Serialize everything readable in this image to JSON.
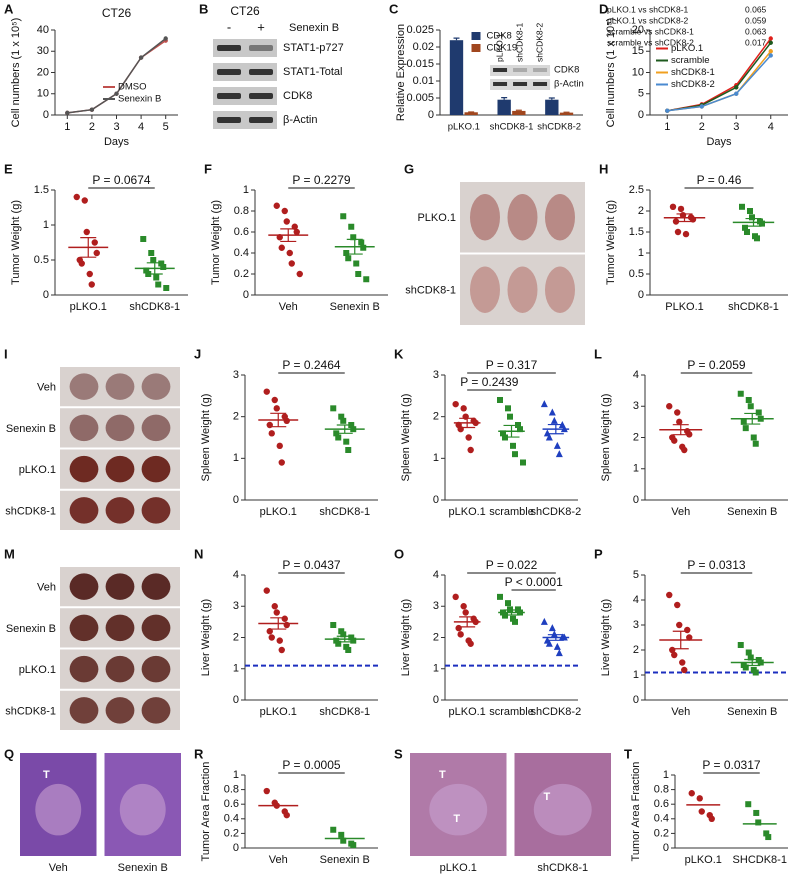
{
  "chart_data": [
    {
      "panel": "A",
      "type": "line",
      "title": "CT26",
      "xlabel": "Days",
      "ylabel": "Cell numbers (1 x 10⁵)",
      "x": [
        1,
        2,
        3,
        4,
        5
      ],
      "xlim": [
        0.5,
        5.5
      ],
      "xticks": [
        1,
        2,
        3,
        4,
        5
      ],
      "ylim": [
        0,
        40
      ],
      "yticks": [
        0,
        10,
        20,
        30,
        40
      ],
      "legend": "lower right",
      "series": [
        {
          "name": "DMSO",
          "color": "#c0504d",
          "values": [
            1,
            2.5,
            10,
            27,
            35
          ]
        },
        {
          "name": "Senexin B",
          "color": "#555555",
          "values": [
            1,
            2.5,
            10,
            27,
            36
          ]
        }
      ]
    },
    {
      "panel": "B",
      "type": "blot",
      "title": "CT26",
      "treatment": "Senexin B",
      "lanes": [
        "-",
        "+"
      ],
      "bands": [
        "STAT1-p727",
        "STAT1-Total",
        "CDK8",
        "β-Actin"
      ]
    },
    {
      "panel": "C",
      "type": "bar",
      "ylabel": "Relative Expression",
      "categories": [
        "pLKO.1",
        "shCDK8-1",
        "shCDK8-2"
      ],
      "ylim": [
        0,
        0.025
      ],
      "yticks": [
        0,
        0.005,
        0.01,
        0.015,
        0.02,
        0.025
      ],
      "legend": "upper center",
      "series": [
        {
          "name": "CDK8",
          "color": "#1f3a6e",
          "values": [
            0.022,
            0.0045,
            0.0045
          ],
          "errors": [
            0.0006,
            0.0006,
            0.0005
          ]
        },
        {
          "name": "CDK19",
          "color": "#a0461e",
          "values": [
            0.0008,
            0.0012,
            0.0007
          ],
          "errors": [
            0.0001,
            0.0002,
            0.0001
          ]
        }
      ],
      "inset": {
        "lanes": [
          "pLKO.1",
          "shCDK8-1",
          "shCDK8-2"
        ],
        "bands": [
          "CDK8",
          "β-Actin"
        ]
      }
    },
    {
      "panel": "D",
      "type": "line",
      "xlabel": "Days",
      "ylabel": "Cell numbers (1 x 10⁵)",
      "x": [
        1,
        2,
        3,
        4
      ],
      "xlim": [
        0.5,
        4.5
      ],
      "xticks": [
        1,
        2,
        3,
        4
      ],
      "ylim": [
        0,
        20
      ],
      "yticks": [
        0,
        5,
        10,
        15,
        20
      ],
      "legend": "center left",
      "comparisons": [
        "pLKO.1 vs shCDK8-1",
        "pLKO.1 vs shCDK8-2",
        "scramble vs shCDK8-1",
        "scramble vs shCDK8-2"
      ],
      "p_values": [
        0.065,
        0.059,
        0.063,
        0.017
      ],
      "series": [
        {
          "name": "pLKO.1",
          "color": "#e0201b",
          "values": [
            1,
            2.5,
            7,
            18
          ]
        },
        {
          "name": "scramble",
          "color": "#1e5a1e",
          "values": [
            1,
            2.3,
            6.5,
            17
          ]
        },
        {
          "name": "shCDK8-1",
          "color": "#f0a020",
          "values": [
            1,
            2,
            5,
            15
          ]
        },
        {
          "name": "shCDK8-2",
          "color": "#4a8ad0",
          "values": [
            1,
            2,
            5,
            14
          ]
        }
      ]
    },
    {
      "panel": "E",
      "type": "dot",
      "ylabel": "Tumor Weight (g)",
      "categories": [
        "pLKO.1",
        "shCDK8-1"
      ],
      "ylim": [
        0,
        1.5
      ],
      "yticks": [
        0,
        0.5,
        1,
        1.5
      ],
      "groups": [
        {
          "color": "#b01e1e",
          "marker": "circle",
          "points": [
            1.4,
            1.35,
            0.9,
            0.75,
            0.6,
            0.5,
            0.45,
            0.3,
            0.15
          ],
          "mean": 0.68,
          "sem": 0.14
        },
        {
          "color": "#2a8a2a",
          "marker": "square",
          "points": [
            0.8,
            0.6,
            0.5,
            0.45,
            0.4,
            0.35,
            0.3,
            0.25,
            0.15,
            0.1
          ],
          "mean": 0.38,
          "sem": 0.08
        }
      ],
      "pvalues": [
        {
          "between": [
            "pLKO.1",
            "shCDK8-1"
          ],
          "label": "P = 0.0674"
        }
      ]
    },
    {
      "panel": "F",
      "type": "dot",
      "ylabel": "Tumor Weight (g)",
      "categories": [
        "Veh",
        "Senexin B"
      ],
      "ylim": [
        0,
        1
      ],
      "yticks": [
        0,
        0.2,
        0.4,
        0.6,
        0.8,
        1
      ],
      "groups": [
        {
          "color": "#b01e1e",
          "marker": "circle",
          "points": [
            0.85,
            0.8,
            0.7,
            0.65,
            0.6,
            0.55,
            0.45,
            0.4,
            0.3,
            0.2
          ],
          "mean": 0.57,
          "sem": 0.06
        },
        {
          "color": "#2a8a2a",
          "marker": "square",
          "points": [
            0.75,
            0.65,
            0.55,
            0.5,
            0.45,
            0.4,
            0.35,
            0.3,
            0.2,
            0.15
          ],
          "mean": 0.46,
          "sem": 0.07
        }
      ],
      "pvalues": [
        {
          "between": [
            "Veh",
            "Senexin B"
          ],
          "label": "P = 0.2279"
        }
      ]
    },
    {
      "panel": "G",
      "type": "image",
      "rows": [
        "PLKO.1",
        "shCDK8-1"
      ],
      "colors": [
        "#b88a86",
        "#c49a95"
      ]
    },
    {
      "panel": "H",
      "type": "dot",
      "ylabel": "Tumor Weight (g)",
      "categories": [
        "PLKO.1",
        "shCDK8-1"
      ],
      "ylim": [
        0,
        2.5
      ],
      "yticks": [
        0,
        0.5,
        1,
        1.5,
        2,
        2.5
      ],
      "groups": [
        {
          "color": "#b01e1e",
          "marker": "circle",
          "points": [
            2.1,
            2.05,
            1.9,
            1.85,
            1.8,
            1.75,
            1.5,
            1.45
          ],
          "mean": 1.84,
          "sem": 0.09
        },
        {
          "color": "#2a8a2a",
          "marker": "square",
          "points": [
            2.1,
            2,
            1.85,
            1.75,
            1.7,
            1.6,
            1.5,
            1.4,
            1.35
          ],
          "mean": 1.73,
          "sem": 0.09
        }
      ],
      "pvalues": [
        {
          "between": [
            "PLKO.1",
            "shCDK8-1"
          ],
          "label": "P = 0.46"
        }
      ]
    },
    {
      "panel": "I",
      "type": "image",
      "rows": [
        "Veh",
        "Senexin B",
        "pLKO.1",
        "shCDK8-1"
      ],
      "colors": [
        "#9a7a78",
        "#8f6a68",
        "#6e2a22",
        "#74302a"
      ]
    },
    {
      "panel": "J",
      "type": "dot",
      "ylabel": "Spleen Weight (g)",
      "categories": [
        "pLKO.1",
        "shCDK8-1"
      ],
      "ylim": [
        0,
        3
      ],
      "yticks": [
        0,
        1,
        2,
        3
      ],
      "groups": [
        {
          "color": "#b01e1e",
          "marker": "circle",
          "points": [
            2.6,
            2.4,
            2.2,
            2,
            1.9,
            1.8,
            1.6,
            1.3,
            0.9
          ],
          "mean": 1.92,
          "sem": 0.16
        },
        {
          "color": "#2a8a2a",
          "marker": "square",
          "points": [
            2.2,
            2,
            1.9,
            1.8,
            1.7,
            1.6,
            1.5,
            1.4,
            1.2
          ],
          "mean": 1.7,
          "sem": 0.1
        }
      ],
      "pvalues": [
        {
          "between": [
            "pLKO.1",
            "shCDK8-1"
          ],
          "label": "P = 0.2464"
        }
      ]
    },
    {
      "panel": "K",
      "type": "dot",
      "ylabel": "Spleen Weight (g)",
      "categories": [
        "pLKO.1",
        "scramble",
        "shCDK8-2"
      ],
      "ylim": [
        0,
        3
      ],
      "yticks": [
        0,
        1,
        2,
        3
      ],
      "groups": [
        {
          "color": "#b01e1e",
          "marker": "circle",
          "points": [
            2.3,
            2.2,
            2,
            1.9,
            1.85,
            1.8,
            1.7,
            1.5,
            1.2
          ],
          "mean": 1.85,
          "sem": 0.11
        },
        {
          "color": "#2a8a2a",
          "marker": "square",
          "points": [
            2.4,
            2.2,
            2,
            1.8,
            1.7,
            1.6,
            1.5,
            1.3,
            1.1,
            0.9
          ],
          "mean": 1.65,
          "sem": 0.14
        },
        {
          "color": "#1f3fbf",
          "marker": "triangle",
          "points": [
            2.3,
            2.1,
            1.9,
            1.8,
            1.7,
            1.6,
            1.5,
            1.3,
            1.1
          ],
          "mean": 1.7,
          "sem": 0.11
        }
      ],
      "pvalues": [
        {
          "between": [
            "pLKO.1",
            "shCDK8-2"
          ],
          "label": "P = 0.317"
        },
        {
          "between": [
            "pLKO.1",
            "scramble"
          ],
          "label": "P = 0.2439"
        }
      ]
    },
    {
      "panel": "L",
      "type": "dot",
      "ylabel": "Spleen Weight (g)",
      "categories": [
        "Veh",
        "Senexin B"
      ],
      "ylim": [
        0,
        4
      ],
      "yticks": [
        0,
        1,
        2,
        3,
        4
      ],
      "groups": [
        {
          "color": "#b01e1e",
          "marker": "circle",
          "points": [
            3,
            2.8,
            2.5,
            2.2,
            2.1,
            2,
            1.9,
            1.7,
            1.6
          ],
          "mean": 2.25,
          "sem": 0.16
        },
        {
          "color": "#2a8a2a",
          "marker": "square",
          "points": [
            3.4,
            3.2,
            3,
            2.8,
            2.6,
            2.5,
            2.3,
            2,
            1.8
          ],
          "mean": 2.6,
          "sem": 0.17
        }
      ],
      "pvalues": [
        {
          "between": [
            "Veh",
            "Senexin B"
          ],
          "label": "P = 0.2059"
        }
      ]
    },
    {
      "panel": "M",
      "type": "image",
      "rows": [
        "Veh",
        "Senexin B",
        "pLKO.1",
        "shCDK8-1"
      ],
      "colors": [
        "#5a2a26",
        "#62302a",
        "#6a3a34",
        "#70403a"
      ]
    },
    {
      "panel": "N",
      "type": "dot",
      "ylabel": "Liver Weight (g)",
      "categories": [
        "pLKO.1",
        "shCDK8-1"
      ],
      "ylim": [
        0,
        4
      ],
      "yticks": [
        0,
        1,
        2,
        3,
        4
      ],
      "hline": 1.1,
      "hline_color": "#1c2fbf",
      "groups": [
        {
          "color": "#b01e1e",
          "marker": "circle",
          "points": [
            3.5,
            3,
            2.8,
            2.6,
            2.4,
            2.2,
            2,
            1.9,
            1.6
          ],
          "mean": 2.45,
          "sem": 0.18
        },
        {
          "color": "#2a8a2a",
          "marker": "square",
          "points": [
            2.4,
            2.2,
            2.1,
            2,
            1.9,
            1.9,
            1.8,
            1.7,
            1.6
          ],
          "mean": 1.95,
          "sem": 0.09
        }
      ],
      "pvalues": [
        {
          "between": [
            "pLKO.1",
            "shCDK8-1"
          ],
          "label": "P = 0.0437"
        }
      ]
    },
    {
      "panel": "O",
      "type": "dot",
      "ylabel": "Liver Weight (g)",
      "categories": [
        "pLKO.1",
        "scramble",
        "shCDK8-2"
      ],
      "ylim": [
        0,
        4
      ],
      "yticks": [
        0,
        1,
        2,
        3,
        4
      ],
      "hline": 1.1,
      "hline_color": "#1c2fbf",
      "groups": [
        {
          "color": "#b01e1e",
          "marker": "circle",
          "points": [
            3.3,
            3,
            2.8,
            2.6,
            2.5,
            2.3,
            2.1,
            1.9,
            1.8
          ],
          "mean": 2.5,
          "sem": 0.16
        },
        {
          "color": "#2a8a2a",
          "marker": "square",
          "points": [
            3.3,
            3.1,
            2.9,
            2.9,
            2.8,
            2.8,
            2.7,
            2.6,
            2.5
          ],
          "mean": 2.8,
          "sem": 0.08
        },
        {
          "color": "#1f3fbf",
          "marker": "triangle",
          "points": [
            2.5,
            2.3,
            2.1,
            2,
            2,
            1.9,
            1.8,
            1.7,
            1.5
          ],
          "mean": 2,
          "sem": 0.09
        }
      ],
      "pvalues": [
        {
          "between": [
            "pLKO.1",
            "shCDK8-2"
          ],
          "label": "P = 0.022"
        },
        {
          "between": [
            "scramble",
            "shCDK8-2"
          ],
          "label": "P < 0.0001"
        }
      ]
    },
    {
      "panel": "P",
      "type": "dot",
      "ylabel": "Liver Weight (g)",
      "categories": [
        "Veh",
        "Senexin B"
      ],
      "ylim": [
        0,
        5
      ],
      "yticks": [
        0,
        1,
        2,
        3,
        4,
        5
      ],
      "hline": 1.1,
      "hline_color": "#1c2fbf",
      "groups": [
        {
          "color": "#b01e1e",
          "marker": "circle",
          "points": [
            4.2,
            3.8,
            3,
            2.8,
            2.5,
            2,
            1.8,
            1.5,
            1.2
          ],
          "mean": 2.4,
          "sem": 0.35
        },
        {
          "color": "#2a8a2a",
          "marker": "square",
          "points": [
            2.2,
            1.9,
            1.7,
            1.6,
            1.5,
            1.4,
            1.3,
            1.2,
            1.1
          ],
          "mean": 1.5,
          "sem": 0.12
        }
      ],
      "pvalues": [
        {
          "between": [
            "Veh",
            "Senexin B"
          ],
          "label": "P = 0.0313"
        }
      ]
    },
    {
      "panel": "Q",
      "type": "micrograph",
      "captions": [
        "Veh",
        "Senexin B"
      ],
      "marks": [
        "T"
      ],
      "colors": [
        "#7a4aa8",
        "#8a58b4"
      ]
    },
    {
      "panel": "R",
      "type": "dot",
      "ylabel": "Tumor Area Fraction",
      "categories": [
        "Veh",
        "Senexin B"
      ],
      "ylim": [
        0,
        1
      ],
      "yticks": [
        0,
        0.2,
        0.4,
        0.6,
        0.8,
        1
      ],
      "groups": [
        {
          "color": "#b01e1e",
          "marker": "circle",
          "points": [
            0.78,
            0.62,
            0.58,
            0.5,
            0.45
          ],
          "mean": 0.58
        },
        {
          "color": "#2a8a2a",
          "marker": "square",
          "points": [
            0.25,
            0.18,
            0.1,
            0.06,
            0.04
          ],
          "mean": 0.13
        }
      ],
      "pvalues": [
        {
          "between": [
            "Veh",
            "Senexin B"
          ],
          "label": "P = 0.0005"
        }
      ]
    },
    {
      "panel": "S",
      "type": "micrograph",
      "captions": [
        "pLKO.1",
        "shCDK8-1"
      ],
      "marks": [
        "T",
        "T",
        "T"
      ],
      "colors": [
        "#b07aa8",
        "#a86e9e"
      ]
    },
    {
      "panel": "T",
      "type": "dot",
      "ylabel": "Tumor Area Fraction",
      "categories": [
        "pLKO.1",
        "SHCDK8-1"
      ],
      "ylim": [
        0,
        1
      ],
      "yticks": [
        0,
        0.2,
        0.4,
        0.6,
        0.8,
        1
      ],
      "groups": [
        {
          "color": "#b01e1e",
          "marker": "circle",
          "points": [
            0.75,
            0.68,
            0.5,
            0.45,
            0.4
          ],
          "mean": 0.59
        },
        {
          "color": "#2a8a2a",
          "marker": "square",
          "points": [
            0.6,
            0.48,
            0.35,
            0.2,
            0.15
          ],
          "mean": 0.33
        }
      ],
      "pvalues": [
        {
          "between": [
            "pLKO.1",
            "SHCDK8-1"
          ],
          "label": "P = 0.0317"
        }
      ]
    }
  ]
}
